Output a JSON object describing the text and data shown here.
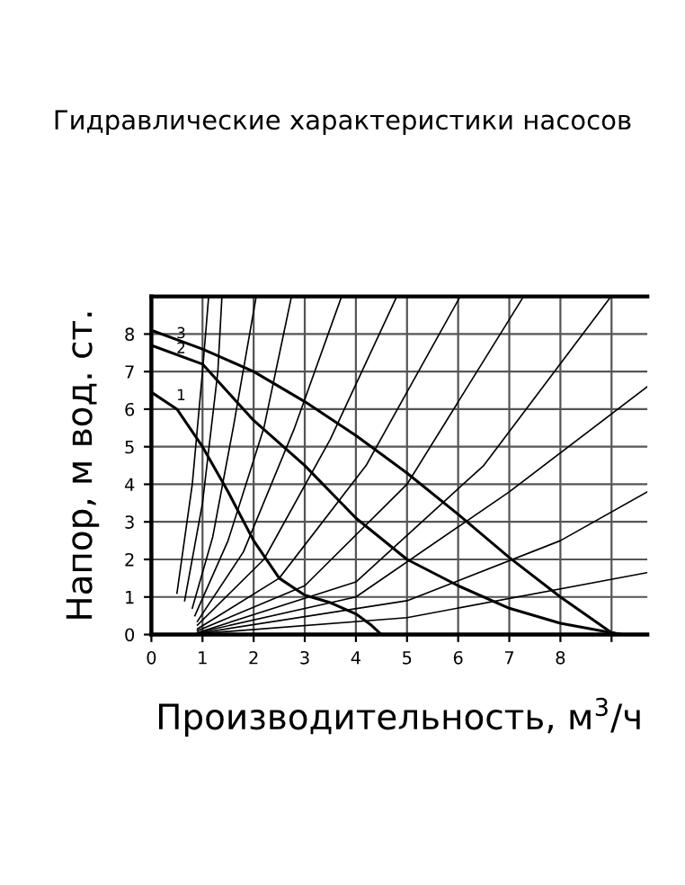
{
  "chart_data": {
    "type": "line",
    "title": "Гидравлические характеристики насосов",
    "xlabel": "Производительность, м$^{3}$/ч",
    "ylabel": "Напор, м вод. ст.",
    "xlim": [
      0,
      9.7
    ],
    "ylim": [
      0,
      9
    ],
    "xticks": [
      0,
      1,
      2,
      3,
      4,
      5,
      6,
      7,
      8,
      {
        "value": 9,
        "label": null
      }
    ],
    "yticks": [
      0,
      1,
      2,
      3,
      4,
      5,
      6,
      7,
      8
    ],
    "grid": true,
    "marker": "none",
    "line_style": "solid",
    "series": [
      {
        "name": "3",
        "color": "#000000",
        "x": [
          0,
          1,
          2,
          3,
          4,
          5,
          6,
          7,
          8,
          9,
          9.2
        ],
        "values": [
          8.1,
          7.6,
          7.0,
          6.2,
          5.3,
          4.3,
          3.2,
          2.05,
          1.0,
          0.05,
          0
        ]
      },
      {
        "name": "2",
        "color": "#000000",
        "x": [
          0,
          1,
          2,
          3,
          4,
          5,
          6,
          7,
          8,
          9,
          9.2
        ],
        "values": [
          7.7,
          7.2,
          5.7,
          4.5,
          3.1,
          2.0,
          1.3,
          0.7,
          0.3,
          0.05,
          0
        ]
      },
      {
        "name": "1",
        "color": "#000000",
        "x": [
          0,
          0.5,
          1,
          1.5,
          2,
          2.5,
          3,
          3.5,
          4,
          4.3,
          4.5
        ],
        "values": [
          6.45,
          6.0,
          5.0,
          3.8,
          2.5,
          1.5,
          1.05,
          0.85,
          0.55,
          0.25,
          0
        ]
      },
      {
        "color": "#000000",
        "x": [
          0.5,
          0.8,
          1.0,
          1.12
        ],
        "values": [
          1.1,
          4,
          7,
          9
        ]
      },
      {
        "color": "#000000",
        "x": [
          0.65,
          1.0,
          1.3,
          1.38
        ],
        "values": [
          0.9,
          3.5,
          7,
          9
        ]
      },
      {
        "color": "#000000",
        "x": [
          0.8,
          1.2,
          1.6,
          2.05
        ],
        "values": [
          0.7,
          2.6,
          5.5,
          9
        ]
      },
      {
        "color": "#000000",
        "x": [
          0.85,
          1.5,
          2.2,
          2.74
        ],
        "values": [
          0.5,
          2.5,
          5.5,
          9
        ]
      },
      {
        "color": "#000000",
        "x": [
          0.9,
          1.8,
          2.8,
          3.72
        ],
        "values": [
          0.35,
          2.2,
          5.5,
          9
        ]
      },
      {
        "color": "#000000",
        "x": [
          0.9,
          2.2,
          3.5,
          4.8
        ],
        "values": [
          0.25,
          2,
          5.2,
          9
        ]
      },
      {
        "color": "#000000",
        "x": [
          0.9,
          2.5,
          4.2,
          6.04
        ],
        "values": [
          0.15,
          1.5,
          4.5,
          9
        ]
      },
      {
        "color": "#000000",
        "x": [
          0.9,
          3,
          5,
          7.28
        ],
        "values": [
          0.1,
          1.3,
          4,
          9
        ]
      },
      {
        "color": "#000000",
        "x": [
          0.9,
          4,
          6.5,
          8.99
        ],
        "values": [
          0.05,
          1.4,
          4.5,
          9
        ]
      },
      {
        "color": "#000000",
        "x": [
          0.9,
          4,
          7,
          9.7
        ],
        "values": [
          0.05,
          1,
          3.8,
          6.6
        ]
      },
      {
        "color": "#000000",
        "x": [
          0.9,
          5,
          8,
          9.7
        ],
        "values": [
          0.03,
          0.9,
          2.5,
          3.8
        ]
      },
      {
        "color": "#000000",
        "x": [
          0.9,
          5,
          9.7
        ],
        "values": [
          0.02,
          0.45,
          1.65
        ]
      }
    ]
  }
}
